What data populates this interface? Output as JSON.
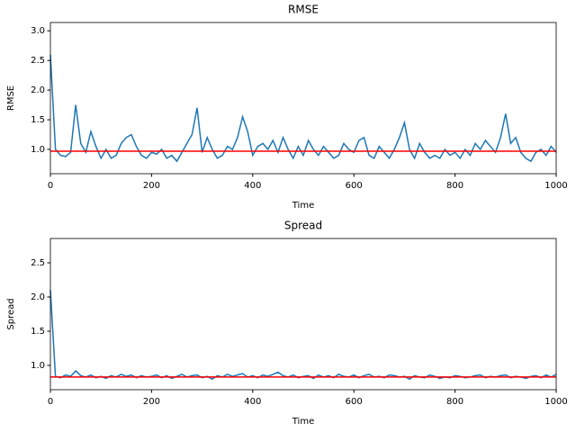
{
  "chart_data": [
    {
      "type": "line",
      "title": "RMSE",
      "xlabel": "Time",
      "ylabel": "RMSE",
      "xlim": [
        0,
        1000
      ],
      "xticks": [
        0,
        200,
        400,
        600,
        800,
        1000
      ],
      "ylim": [
        0.59,
        3.14
      ],
      "yticks": [
        {
          "value": 1,
          "label": "1.0"
        },
        1.5,
        {
          "value": 2,
          "label": "2.0"
        },
        2.5,
        {
          "value": 3,
          "label": "3.0"
        }
      ],
      "x": [
        0,
        10,
        20,
        30,
        40,
        50,
        60,
        70,
        80,
        90,
        100,
        110,
        120,
        130,
        140,
        150,
        160,
        170,
        180,
        190,
        200,
        210,
        220,
        230,
        240,
        250,
        260,
        270,
        280,
        290,
        300,
        310,
        320,
        330,
        340,
        350,
        360,
        370,
        380,
        390,
        400,
        410,
        420,
        430,
        440,
        450,
        460,
        470,
        480,
        490,
        500,
        510,
        520,
        530,
        540,
        550,
        560,
        570,
        580,
        590,
        600,
        610,
        620,
        630,
        640,
        650,
        660,
        670,
        680,
        690,
        700,
        710,
        720,
        730,
        740,
        750,
        760,
        770,
        780,
        790,
        800,
        810,
        820,
        830,
        840,
        850,
        860,
        870,
        880,
        890,
        900,
        910,
        920,
        930,
        940,
        950,
        960,
        970,
        980,
        990,
        1000
      ],
      "series": [
        {
          "color": "#1f77b4",
          "values": [
            2.6,
            1.0,
            0.9,
            0.88,
            0.95,
            1.75,
            1.1,
            0.95,
            1.3,
            1.05,
            0.85,
            1.0,
            0.85,
            0.9,
            1.1,
            1.2,
            1.25,
            1.05,
            0.9,
            0.85,
            0.95,
            0.92,
            1.0,
            0.85,
            0.9,
            0.8,
            0.95,
            1.1,
            1.25,
            1.7,
            0.95,
            1.2,
            1.0,
            0.85,
            0.9,
            1.05,
            1.0,
            1.2,
            1.55,
            1.3,
            0.9,
            1.05,
            1.1,
            1.0,
            1.15,
            0.95,
            1.2,
            1.0,
            0.85,
            1.05,
            0.9,
            1.15,
            1.0,
            0.9,
            1.05,
            0.95,
            0.85,
            0.9,
            1.1,
            1.0,
            0.95,
            1.15,
            1.2,
            0.9,
            0.85,
            1.05,
            0.95,
            0.85,
            1.0,
            1.2,
            1.45,
            1.0,
            0.85,
            1.1,
            0.95,
            0.85,
            0.9,
            0.85,
            1.0,
            0.9,
            0.95,
            0.85,
            1.0,
            0.9,
            1.1,
            1.0,
            1.15,
            1.05,
            0.95,
            1.2,
            1.6,
            1.1,
            1.2,
            0.95,
            0.85,
            0.8,
            0.95,
            1.0,
            0.9,
            1.05,
            0.95
          ]
        }
      ],
      "hline": {
        "y": 0.97,
        "color": "#ff0000"
      }
    },
    {
      "type": "line",
      "title": "Spread",
      "xlabel": "Time",
      "ylabel": "Spread",
      "xlim": [
        0,
        1000
      ],
      "xticks": [
        0,
        200,
        400,
        600,
        800,
        1000
      ],
      "ylim": [
        0.645,
        2.855
      ],
      "yticks": [
        {
          "value": 1,
          "label": "1.0"
        },
        1.5,
        {
          "value": 2,
          "label": "2.0"
        },
        2.5
      ],
      "x": [
        0,
        10,
        20,
        30,
        40,
        50,
        60,
        70,
        80,
        90,
        100,
        110,
        120,
        130,
        140,
        150,
        160,
        170,
        180,
        190,
        200,
        210,
        220,
        230,
        240,
        250,
        260,
        270,
        280,
        290,
        300,
        310,
        320,
        330,
        340,
        350,
        360,
        370,
        380,
        390,
        400,
        410,
        420,
        430,
        440,
        450,
        460,
        470,
        480,
        490,
        500,
        510,
        520,
        530,
        540,
        550,
        560,
        570,
        580,
        590,
        600,
        610,
        620,
        630,
        640,
        650,
        660,
        670,
        680,
        690,
        700,
        710,
        720,
        730,
        740,
        750,
        760,
        770,
        780,
        790,
        800,
        810,
        820,
        830,
        840,
        850,
        860,
        870,
        880,
        890,
        900,
        910,
        920,
        930,
        940,
        950,
        960,
        970,
        980,
        990,
        1000
      ],
      "series": [
        {
          "color": "#1f77b4",
          "values": [
            2.1,
            0.84,
            0.82,
            0.86,
            0.84,
            0.92,
            0.85,
            0.83,
            0.86,
            0.82,
            0.84,
            0.81,
            0.85,
            0.83,
            0.87,
            0.84,
            0.86,
            0.82,
            0.85,
            0.83,
            0.84,
            0.86,
            0.82,
            0.85,
            0.81,
            0.84,
            0.87,
            0.83,
            0.85,
            0.86,
            0.82,
            0.84,
            0.8,
            0.85,
            0.83,
            0.87,
            0.84,
            0.86,
            0.88,
            0.83,
            0.85,
            0.82,
            0.86,
            0.84,
            0.87,
            0.9,
            0.85,
            0.83,
            0.86,
            0.82,
            0.84,
            0.85,
            0.81,
            0.86,
            0.83,
            0.85,
            0.82,
            0.87,
            0.84,
            0.83,
            0.86,
            0.82,
            0.85,
            0.87,
            0.83,
            0.84,
            0.82,
            0.86,
            0.85,
            0.83,
            0.84,
            0.8,
            0.85,
            0.83,
            0.82,
            0.86,
            0.84,
            0.81,
            0.83,
            0.82,
            0.85,
            0.84,
            0.82,
            0.83,
            0.85,
            0.86,
            0.82,
            0.84,
            0.83,
            0.85,
            0.86,
            0.82,
            0.84,
            0.83,
            0.81,
            0.84,
            0.85,
            0.82,
            0.86,
            0.83,
            0.87
          ]
        }
      ],
      "hline": {
        "y": 0.83,
        "color": "#ff0000"
      }
    }
  ]
}
